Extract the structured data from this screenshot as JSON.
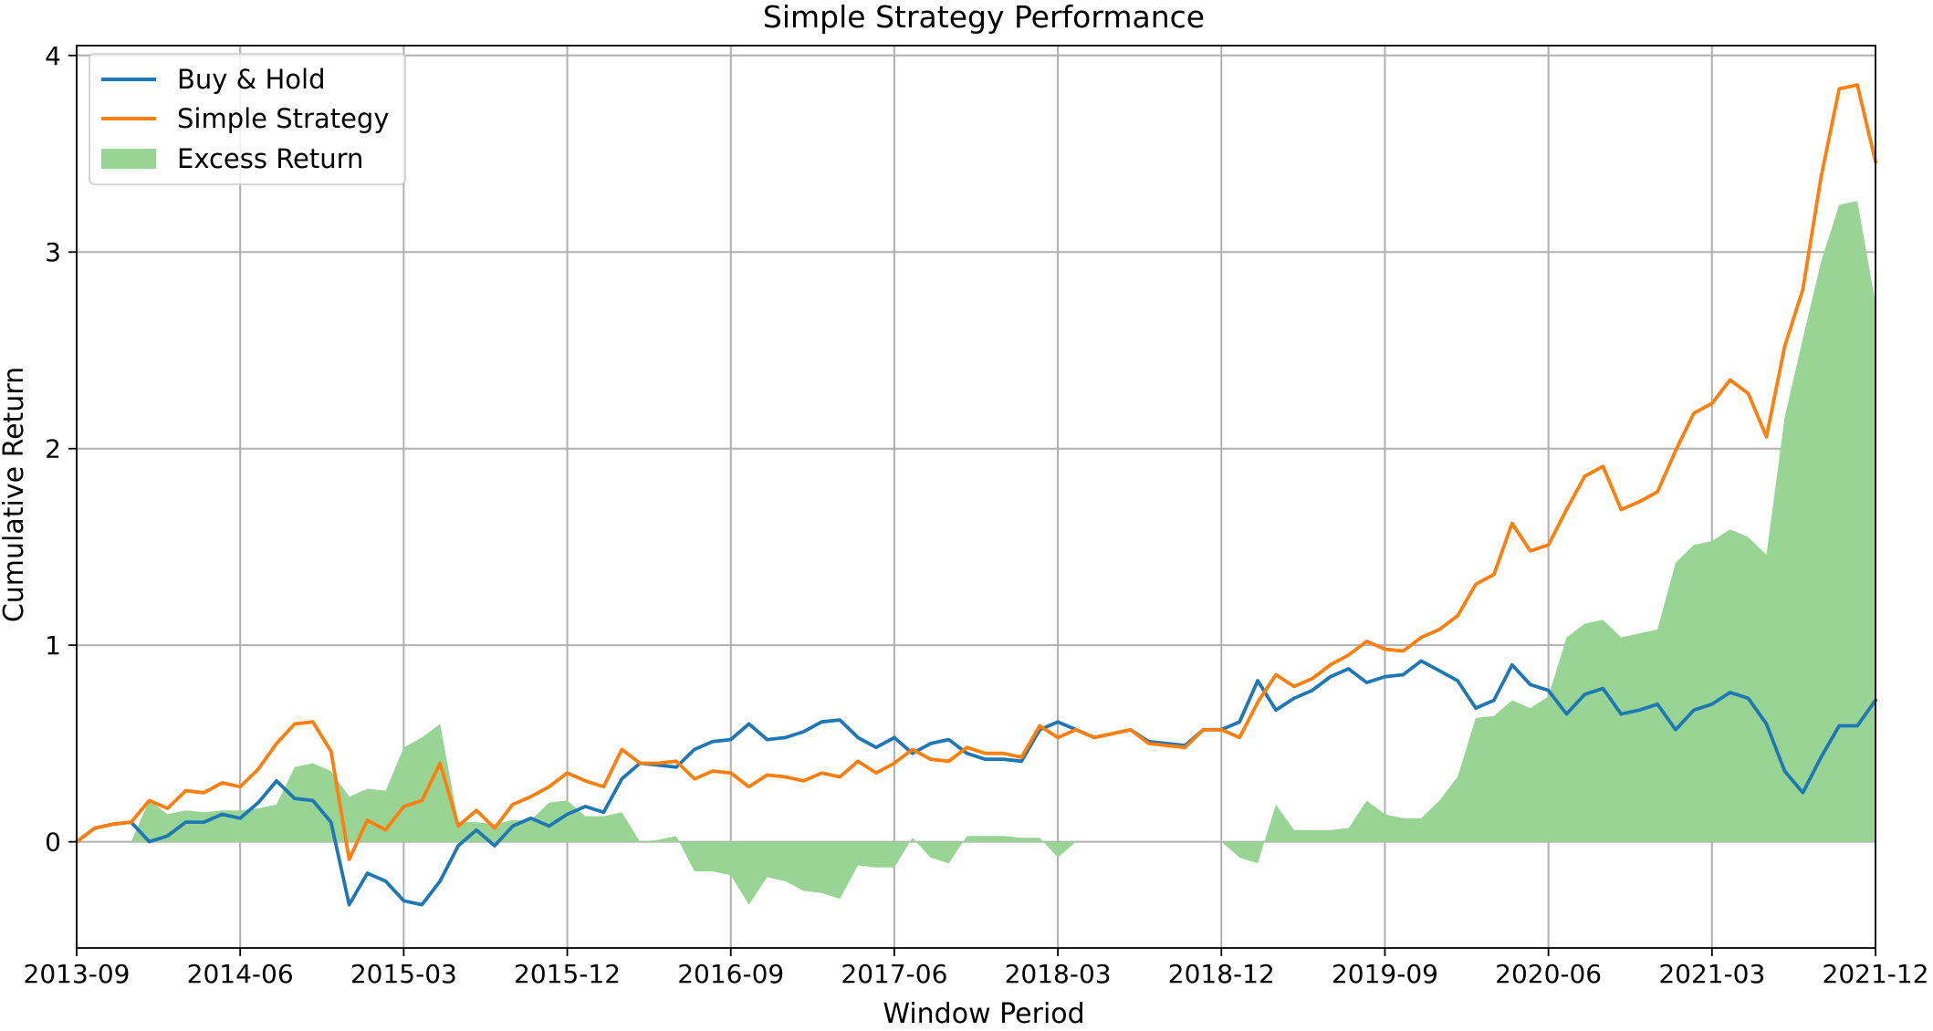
{
  "chart_data": {
    "type": "line",
    "title": "Simple Strategy Performance",
    "xlabel": "Window Period",
    "ylabel": "Cumulative Return",
    "x_ticks": [
      "2013-09",
      "2014-06",
      "2015-03",
      "2015-12",
      "2016-09",
      "2017-06",
      "2018-03",
      "2018-12",
      "2019-09",
      "2020-06",
      "2021-03",
      "2021-12"
    ],
    "y_ticks": [
      0,
      1,
      2,
      3,
      4
    ],
    "ylim": [
      -0.54,
      4.05
    ],
    "xlim": [
      "2013-09",
      "2021-12"
    ],
    "grid": true,
    "legend_position": "top-left",
    "x": [
      "2013-09",
      "2013-10",
      "2013-11",
      "2013-12",
      "2014-01",
      "2014-02",
      "2014-03",
      "2014-04",
      "2014-05",
      "2014-06",
      "2014-07",
      "2014-08",
      "2014-09",
      "2014-10",
      "2014-11",
      "2014-12",
      "2015-01",
      "2015-02",
      "2015-03",
      "2015-04",
      "2015-05",
      "2015-06",
      "2015-07",
      "2015-08",
      "2015-09",
      "2015-10",
      "2015-11",
      "2015-12",
      "2016-01",
      "2016-02",
      "2016-03",
      "2016-04",
      "2016-05",
      "2016-06",
      "2016-07",
      "2016-08",
      "2016-09",
      "2016-10",
      "2016-11",
      "2016-12",
      "2017-01",
      "2017-02",
      "2017-03",
      "2017-04",
      "2017-05",
      "2017-06",
      "2017-07",
      "2017-08",
      "2017-09",
      "2017-10",
      "2017-11",
      "2017-12",
      "2018-01",
      "2018-02",
      "2018-03",
      "2018-04",
      "2018-05",
      "2018-06",
      "2018-07",
      "2018-08",
      "2018-09",
      "2018-10",
      "2018-11",
      "2018-12",
      "2019-01",
      "2019-02",
      "2019-03",
      "2019-04",
      "2019-05",
      "2019-06",
      "2019-07",
      "2019-08",
      "2019-09",
      "2019-10",
      "2019-11",
      "2019-12",
      "2020-01",
      "2020-02",
      "2020-03",
      "2020-04",
      "2020-05",
      "2020-06",
      "2020-07",
      "2020-08",
      "2020-09",
      "2020-10",
      "2020-11",
      "2020-12",
      "2021-01",
      "2021-02",
      "2021-03",
      "2021-04",
      "2021-05",
      "2021-06",
      "2021-07",
      "2021-08",
      "2021-09",
      "2021-10",
      "2021-11",
      "2021-12"
    ],
    "series": [
      {
        "name": "Buy & Hold",
        "color": "#1f77b4",
        "kind": "line",
        "values": [
          0.0,
          0.07,
          0.09,
          0.1,
          0.0,
          0.03,
          0.1,
          0.1,
          0.14,
          0.12,
          0.2,
          0.31,
          0.22,
          0.21,
          0.1,
          -0.32,
          -0.16,
          -0.2,
          -0.3,
          -0.32,
          -0.2,
          -0.02,
          0.06,
          -0.02,
          0.08,
          0.12,
          0.08,
          0.14,
          0.18,
          0.15,
          0.32,
          0.4,
          0.39,
          0.38,
          0.47,
          0.51,
          0.52,
          0.6,
          0.52,
          0.53,
          0.56,
          0.61,
          0.62,
          0.53,
          0.48,
          0.53,
          0.45,
          0.5,
          0.52,
          0.45,
          0.42,
          0.42,
          0.41,
          0.57,
          0.61,
          0.57,
          0.53,
          0.55,
          0.57,
          0.51,
          0.5,
          0.49,
          0.57,
          0.57,
          0.61,
          0.82,
          0.67,
          0.73,
          0.77,
          0.84,
          0.88,
          0.81,
          0.84,
          0.85,
          0.92,
          0.87,
          0.82,
          0.68,
          0.72,
          0.9,
          0.8,
          0.77,
          0.65,
          0.75,
          0.78,
          0.65,
          0.67,
          0.7,
          0.57,
          0.67,
          0.7,
          0.76,
          0.73,
          0.6,
          0.36,
          0.25,
          0.43,
          0.59,
          0.59,
          0.72
        ]
      },
      {
        "name": "Simple Strategy",
        "color": "#ff7f0e",
        "kind": "line",
        "values": [
          0.0,
          0.07,
          0.09,
          0.1,
          0.21,
          0.17,
          0.26,
          0.25,
          0.3,
          0.28,
          0.37,
          0.5,
          0.6,
          0.61,
          0.46,
          -0.09,
          0.11,
          0.06,
          0.18,
          0.21,
          0.4,
          0.08,
          0.16,
          0.07,
          0.19,
          0.23,
          0.28,
          0.35,
          0.31,
          0.28,
          0.47,
          0.4,
          0.4,
          0.41,
          0.32,
          0.36,
          0.35,
          0.28,
          0.34,
          0.33,
          0.31,
          0.35,
          0.33,
          0.41,
          0.35,
          0.4,
          0.47,
          0.42,
          0.41,
          0.48,
          0.45,
          0.45,
          0.43,
          0.59,
          0.53,
          0.57,
          0.53,
          0.55,
          0.57,
          0.5,
          0.49,
          0.48,
          0.57,
          0.57,
          0.53,
          0.71,
          0.85,
          0.79,
          0.83,
          0.9,
          0.95,
          1.02,
          0.98,
          0.97,
          1.04,
          1.08,
          1.15,
          1.31,
          1.36,
          1.62,
          1.48,
          1.51,
          1.69,
          1.86,
          1.91,
          1.69,
          1.73,
          1.78,
          1.99,
          2.18,
          2.23,
          2.35,
          2.28,
          2.06,
          2.52,
          2.81,
          3.38,
          3.83,
          3.85,
          3.46
        ]
      },
      {
        "name": "Excess Return",
        "color": "#98d594",
        "kind": "area",
        "values": [
          0.0,
          0.0,
          0.0,
          0.0,
          0.21,
          0.14,
          0.16,
          0.15,
          0.16,
          0.16,
          0.17,
          0.19,
          0.38,
          0.4,
          0.36,
          0.23,
          0.27,
          0.26,
          0.48,
          0.53,
          0.6,
          0.1,
          0.1,
          0.09,
          0.11,
          0.11,
          0.2,
          0.21,
          0.13,
          0.13,
          0.15,
          0.0,
          0.01,
          0.03,
          -0.15,
          -0.15,
          -0.17,
          -0.32,
          -0.18,
          -0.2,
          -0.25,
          -0.26,
          -0.29,
          -0.12,
          -0.13,
          -0.13,
          0.02,
          -0.08,
          -0.11,
          0.03,
          0.03,
          0.03,
          0.02,
          0.02,
          -0.08,
          0.0,
          0.0,
          0.0,
          0.0,
          0.0,
          0.0,
          0.0,
          0.0,
          0.0,
          -0.08,
          -0.11,
          0.19,
          0.06,
          0.06,
          0.06,
          0.07,
          0.21,
          0.14,
          0.12,
          0.12,
          0.21,
          0.33,
          0.63,
          0.64,
          0.72,
          0.68,
          0.74,
          1.04,
          1.11,
          1.13,
          1.04,
          1.06,
          1.08,
          1.42,
          1.51,
          1.53,
          1.59,
          1.55,
          1.46,
          2.16,
          2.56,
          2.95,
          3.24,
          3.26,
          2.74
        ]
      }
    ]
  }
}
